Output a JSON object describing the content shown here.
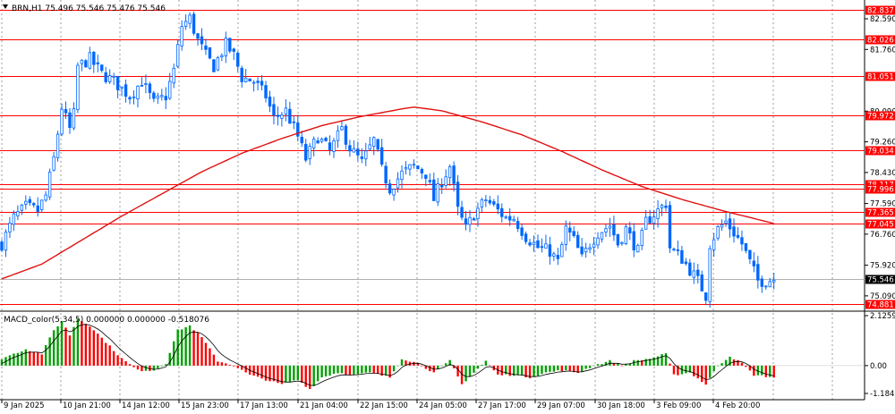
{
  "header": {
    "symbol_label": "BRN,H1  75.496 75.546 75.476 75.546"
  },
  "indicator": {
    "label": "MACD_color(5,34,5) 0.000000 0.000000 -0.518076"
  },
  "colors": {
    "background": "#ffffff",
    "candle_up": "#0066ff",
    "candle_down": "#0066ff",
    "level_line": "#ff0000",
    "ma_line": "#e01010",
    "macd_positive": "#00a000",
    "macd_negative": "#ff0000",
    "macd_signal": "#000000",
    "grid": "#000000",
    "price_tag_bg": "#ff0000",
    "current_price_bg": "#000000"
  },
  "chart_data": [
    {
      "type": "line",
      "title": "BRN,H1",
      "subtype": "candlestick price chart with horizontal levels and moving average",
      "ylim": [
        74.7,
        83.05
      ],
      "grid": "vertical dotted",
      "y_ticks": [
        "82.590",
        "81.760",
        "80.090",
        "79.260",
        "78.430",
        "77.590",
        "76.760",
        "75.920",
        "75.090"
      ],
      "x_ticks": [
        "9 Jan 2025",
        "10 Jan 21:00",
        "14 Jan 12:00",
        "15 Jan 23:00",
        "17 Jan 13:00",
        "21 Jan 04:00",
        "22 Jan 15:00",
        "24 Jan 05:00",
        "27 Jan 17:00",
        "29 Jan 07:00",
        "30 Jan 18:00",
        "3 Feb 09:00",
        "4 Feb 20:00"
      ],
      "levels": [
        {
          "value": 82.837,
          "label": "82.837"
        },
        {
          "value": 82.026,
          "label": "82.026"
        },
        {
          "value": 81.051,
          "label": "81.051"
        },
        {
          "value": 79.972,
          "label": "79.972"
        },
        {
          "value": 79.034,
          "label": "79.034"
        },
        {
          "value": 78.117,
          "label": "78.117"
        },
        {
          "value": 77.996,
          "label": "77.996"
        },
        {
          "value": 77.365,
          "label": "77.365"
        },
        {
          "value": 77.045,
          "label": "77.045"
        },
        {
          "value": 74.881,
          "label": "74.881"
        }
      ],
      "current_price": {
        "value": 75.546,
        "label": "75.546"
      },
      "close_path": [
        [
          0,
          76.5
        ],
        [
          3,
          77.2
        ],
        [
          6,
          77.5
        ],
        [
          9,
          77.4
        ],
        [
          11,
          77.8
        ],
        [
          13,
          78.8
        ],
        [
          15,
          80.2
        ],
        [
          17,
          79.6
        ],
        [
          18,
          80.0
        ],
        [
          19,
          81.3
        ],
        [
          22,
          81.5
        ],
        [
          25,
          81.1
        ],
        [
          28,
          80.9
        ],
        [
          32,
          80.5
        ],
        [
          35,
          80.9
        ],
        [
          38,
          80.3
        ],
        [
          41,
          80.5
        ],
        [
          43,
          81.2
        ],
        [
          45,
          82.4
        ],
        [
          47,
          82.6
        ],
        [
          49,
          82.0
        ],
        [
          51,
          81.6
        ],
        [
          53,
          81.3
        ],
        [
          56,
          81.9
        ],
        [
          58,
          81.6
        ],
        [
          60,
          81.0
        ],
        [
          63,
          80.9
        ],
        [
          66,
          80.5
        ],
        [
          68,
          79.9
        ],
        [
          71,
          80.1
        ],
        [
          74,
          79.4
        ],
        [
          76,
          78.8
        ],
        [
          79,
          79.4
        ],
        [
          82,
          79.0
        ],
        [
          85,
          79.6
        ],
        [
          87,
          79.1
        ],
        [
          90,
          78.7
        ],
        [
          93,
          79.3
        ],
        [
          95,
          78.5
        ],
        [
          97,
          78.0
        ],
        [
          100,
          78.4
        ],
        [
          103,
          78.6
        ],
        [
          106,
          78.4
        ],
        [
          108,
          77.7
        ],
        [
          110,
          78.2
        ],
        [
          112,
          78.6
        ],
        [
          114,
          77.4
        ],
        [
          116,
          76.9
        ],
        [
          118,
          77.3
        ],
        [
          121,
          77.7
        ],
        [
          123,
          77.5
        ],
        [
          126,
          77.2
        ],
        [
          128,
          77.2
        ],
        [
          131,
          76.7
        ],
        [
          134,
          76.4
        ],
        [
          137,
          76.3
        ],
        [
          139,
          76.0
        ],
        [
          141,
          76.9
        ],
        [
          143,
          76.6
        ],
        [
          145,
          76.1
        ],
        [
          147,
          76.5
        ],
        [
          149,
          76.8
        ],
        [
          152,
          77.0
        ],
        [
          154,
          76.5
        ],
        [
          156,
          76.9
        ],
        [
          159,
          76.3
        ],
        [
          161,
          77.1
        ],
        [
          163,
          77.3
        ],
        [
          166,
          77.6
        ],
        [
          167,
          76.4
        ],
        [
          170,
          76.1
        ],
        [
          172,
          75.8
        ],
        [
          174,
          75.5
        ],
        [
          176,
          75.1
        ],
        [
          177,
          76.5
        ],
        [
          179,
          76.9
        ],
        [
          181,
          77.1
        ],
        [
          183,
          76.8
        ],
        [
          185,
          76.5
        ],
        [
          187,
          76.0
        ],
        [
          189,
          75.5
        ],
        [
          191,
          75.5
        ],
        [
          193,
          75.55
        ]
      ],
      "moving_average": [
        [
          0,
          75.55
        ],
        [
          10,
          75.95
        ],
        [
          20,
          76.6
        ],
        [
          30,
          77.25
        ],
        [
          40,
          77.85
        ],
        [
          50,
          78.45
        ],
        [
          60,
          78.95
        ],
        [
          70,
          79.35
        ],
        [
          80,
          79.7
        ],
        [
          90,
          79.95
        ],
        [
          100,
          80.15
        ],
        [
          103,
          80.2
        ],
        [
          110,
          80.1
        ],
        [
          120,
          79.8
        ],
        [
          130,
          79.45
        ],
        [
          140,
          79.0
        ],
        [
          150,
          78.5
        ],
        [
          160,
          78.05
        ],
        [
          170,
          77.7
        ],
        [
          180,
          77.4
        ],
        [
          193,
          77.05
        ]
      ]
    },
    {
      "type": "bar",
      "title": "MACD_color(5,34,5)",
      "ylim": [
        -1.184,
        2.1259
      ],
      "y_ticks": [
        "2.125901",
        "0.00",
        "-1.184015"
      ],
      "bar_path": [
        [
          0,
          0.3
        ],
        [
          6,
          0.7
        ],
        [
          10,
          0.5
        ],
        [
          13,
          1.5
        ],
        [
          15,
          1.9
        ],
        [
          17,
          1.3
        ],
        [
          19,
          2.0
        ],
        [
          22,
          1.7
        ],
        [
          26,
          1.0
        ],
        [
          30,
          0.3
        ],
        [
          34,
          -0.2
        ],
        [
          38,
          -0.2
        ],
        [
          41,
          0.1
        ],
        [
          44,
          1.5
        ],
        [
          47,
          1.7
        ],
        [
          50,
          1.2
        ],
        [
          54,
          0.2
        ],
        [
          58,
          0.0
        ],
        [
          62,
          -0.4
        ],
        [
          66,
          -0.6
        ],
        [
          70,
          -0.8
        ],
        [
          74,
          -0.6
        ],
        [
          77,
          -1.0
        ],
        [
          80,
          -0.5
        ],
        [
          84,
          -0.3
        ],
        [
          88,
          -0.4
        ],
        [
          92,
          -0.3
        ],
        [
          97,
          -0.5
        ],
        [
          100,
          0.3
        ],
        [
          104,
          0.1
        ],
        [
          108,
          -0.3
        ],
        [
          112,
          0.2
        ],
        [
          115,
          -0.8
        ],
        [
          118,
          -0.3
        ],
        [
          121,
          0.2
        ],
        [
          124,
          -0.4
        ],
        [
          128,
          -0.4
        ],
        [
          132,
          -0.5
        ],
        [
          136,
          -0.3
        ],
        [
          140,
          -0.2
        ],
        [
          144,
          -0.3
        ],
        [
          148,
          0.0
        ],
        [
          152,
          0.2
        ],
        [
          155,
          0.0
        ],
        [
          158,
          0.2
        ],
        [
          162,
          0.3
        ],
        [
          166,
          0.5
        ],
        [
          168,
          -0.4
        ],
        [
          172,
          -0.3
        ],
        [
          176,
          -0.8
        ],
        [
          179,
          0.0
        ],
        [
          182,
          0.4
        ],
        [
          185,
          0.1
        ],
        [
          188,
          -0.4
        ],
        [
          193,
          -0.5
        ]
      ]
    }
  ]
}
